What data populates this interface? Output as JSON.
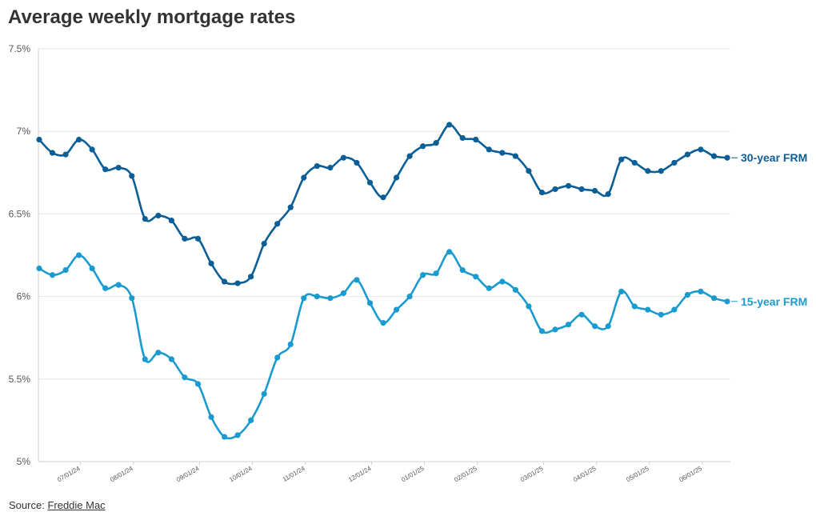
{
  "title": "Average weekly mortgage rates",
  "source": {
    "label": "Source:",
    "link_text": "Freddie Mac"
  },
  "chart_data": {
    "type": "line",
    "title": "Average weekly mortgage rates",
    "ylim": [
      5,
      7.5
    ],
    "yticks": [
      5,
      5.5,
      6,
      6.5,
      7,
      7.5
    ],
    "ytick_labels": [
      "5%",
      "5.5%",
      "6%",
      "6.5%",
      "7%",
      "7.5%"
    ],
    "xtick_labels": [
      "07/01/24",
      "08/01/24",
      "09/01/24",
      "10/01/24",
      "11/01/24",
      "12/01/24",
      "01/01/25",
      "02/01/25",
      "03/01/25",
      "04/01/25",
      "05/01/25",
      "06/01/25"
    ],
    "xtick_index": [
      3,
      7,
      12,
      16,
      20,
      25,
      29,
      33,
      38,
      42,
      46,
      50
    ],
    "grid": true,
    "legend": "direct labels at line ends",
    "series": [
      {
        "name": "30-year FRM",
        "color": "#0b5e96",
        "values": [
          6.95,
          6.87,
          6.86,
          6.95,
          6.89,
          6.77,
          6.78,
          6.73,
          6.47,
          6.49,
          6.46,
          6.35,
          6.35,
          6.2,
          6.09,
          6.08,
          6.12,
          6.32,
          6.44,
          6.54,
          6.72,
          6.79,
          6.78,
          6.84,
          6.81,
          6.69,
          6.6,
          6.72,
          6.85,
          6.91,
          6.93,
          7.04,
          6.96,
          6.95,
          6.89,
          6.87,
          6.85,
          6.76,
          6.63,
          6.65,
          6.67,
          6.65,
          6.64,
          6.62,
          6.83,
          6.81,
          6.76,
          6.76,
          6.81,
          6.86,
          6.89,
          6.85,
          6.84
        ]
      },
      {
        "name": "15-year FRM",
        "color": "#1a9bd0",
        "values": [
          6.17,
          6.13,
          6.16,
          6.25,
          6.17,
          6.05,
          6.07,
          5.99,
          5.62,
          5.66,
          5.62,
          5.51,
          5.47,
          5.27,
          5.15,
          5.16,
          5.25,
          5.41,
          5.63,
          5.71,
          5.99,
          6.0,
          5.99,
          6.02,
          6.1,
          5.96,
          5.84,
          5.92,
          6.0,
          6.13,
          6.14,
          6.27,
          6.16,
          6.12,
          6.05,
          6.09,
          6.04,
          5.94,
          5.79,
          5.8,
          5.83,
          5.89,
          5.82,
          5.82,
          6.03,
          5.94,
          5.92,
          5.89,
          5.92,
          6.01,
          6.03,
          5.99,
          5.97
        ]
      }
    ]
  }
}
